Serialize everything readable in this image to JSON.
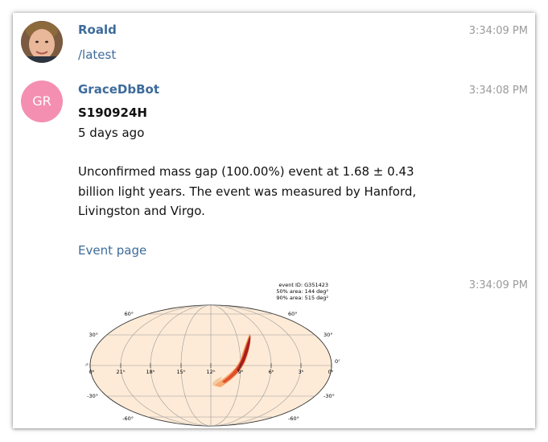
{
  "messages": [
    {
      "sender": "Roald",
      "time": "3:34:09 PM",
      "text": "/latest"
    },
    {
      "sender": "GraceDbBot",
      "avatar_initials": "GR",
      "time": "3:34:08 PM",
      "event_id": "S190924H",
      "age": "5 days ago",
      "body_line_1": "Unconfirmed mass gap (100.00%) event at 1.68 ± 0.43",
      "body_line_2": "billion light years. The event was measured by Hanford,",
      "body_line_3": "Livingston and Virgo.",
      "event_link": "Event page"
    },
    {
      "time": "3:34:09 PM",
      "skymap": {
        "event_id_label": "event ID: G351423",
        "area50_label": "50% area: 144 deg²",
        "area90_label": "90% area: 515 deg²",
        "ra_ticks": [
          "0ʰ",
          "21ʰ",
          "18ʰ",
          "15ʰ",
          "12ʰ",
          "9ʰ",
          "6ʰ",
          "3ʰ",
          "0ʰ"
        ],
        "dec_ticks_left": [
          "60°",
          "30°",
          "0°",
          "-30°",
          "-60°"
        ],
        "dec_ticks_right": [
          "60°",
          "30°",
          "0°",
          "-30°",
          "-60°"
        ]
      }
    }
  ],
  "colors": {
    "accent": "#3d6b9b",
    "avatar_bg": "#f48fb1",
    "timestamp": "#9a9a9a",
    "map_fill": "#fdebd7",
    "contour_dark": "#b22222",
    "contour_light": "#f08030"
  }
}
